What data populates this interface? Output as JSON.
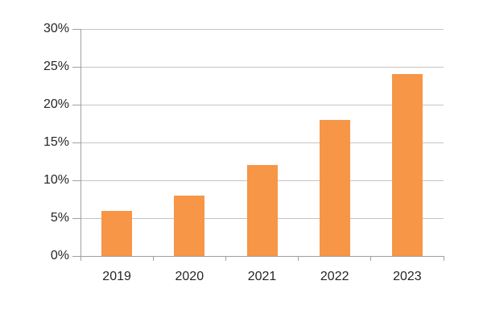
{
  "chart_data": {
    "type": "bar",
    "categories": [
      "2019",
      "2020",
      "2021",
      "2022",
      "2023"
    ],
    "values": [
      6,
      8,
      12,
      18,
      24
    ],
    "unit": "%",
    "xlabel": "",
    "ylabel": "",
    "ylim": [
      0,
      30
    ],
    "ytick_step": 5,
    "ytick_labels": [
      "0%",
      "5%",
      "10%",
      "15%",
      "20%",
      "25%",
      "30%"
    ],
    "grid": "horizontal-only",
    "legend": "none",
    "gridlines_behind_bars": true,
    "colors": {
      "bar_fill": "#F79646",
      "gridline": "#C4C4C4",
      "axis": "#A0A0A0",
      "text": "#262626",
      "background": "#FFFFFF"
    }
  }
}
